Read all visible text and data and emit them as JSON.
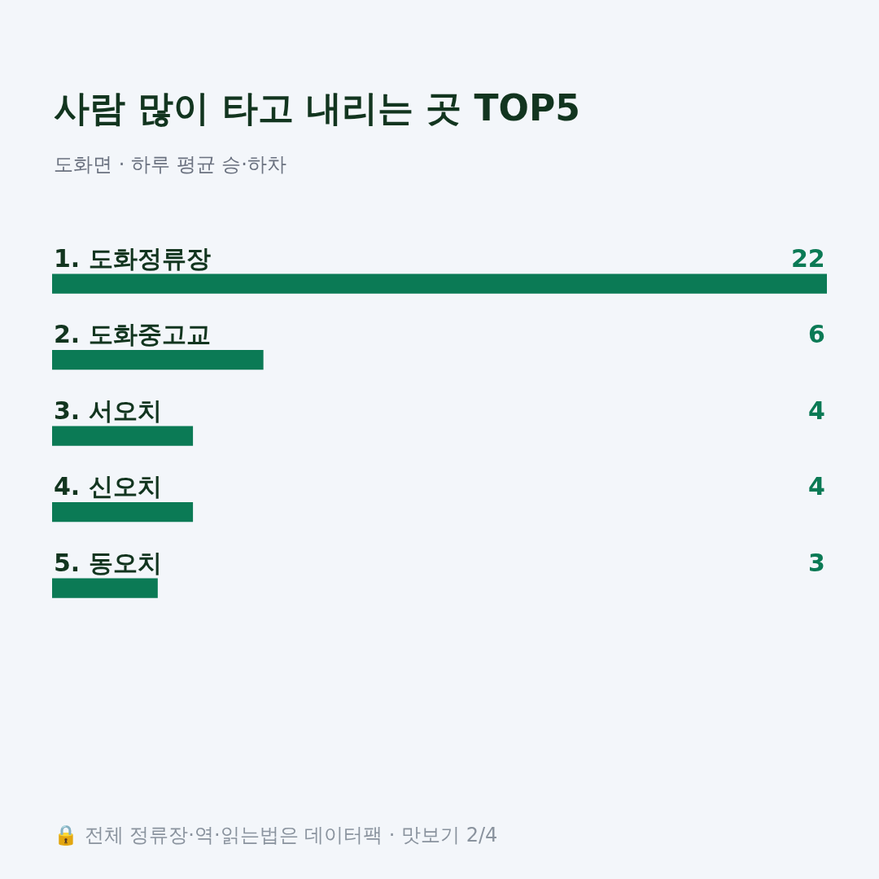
{
  "chart_data": {
    "type": "bar",
    "orientation": "horizontal",
    "title": "사람 많이 타고 내리는 곳 TOP5",
    "subtitle": "도화면 · 하루 평균 승·하차",
    "categories": [
      "1. 도화정류장",
      "2. 도화중고교",
      "3. 서오치",
      "4. 신오치",
      "5. 동오치"
    ],
    "values": [
      22,
      6,
      4,
      4,
      3
    ],
    "color": "#0b7a55",
    "data_labels": true,
    "annotations": [
      "🔒 전체 정류장·역·읽는법은 데이터팩 · 맛보기 2/4"
    ]
  }
}
